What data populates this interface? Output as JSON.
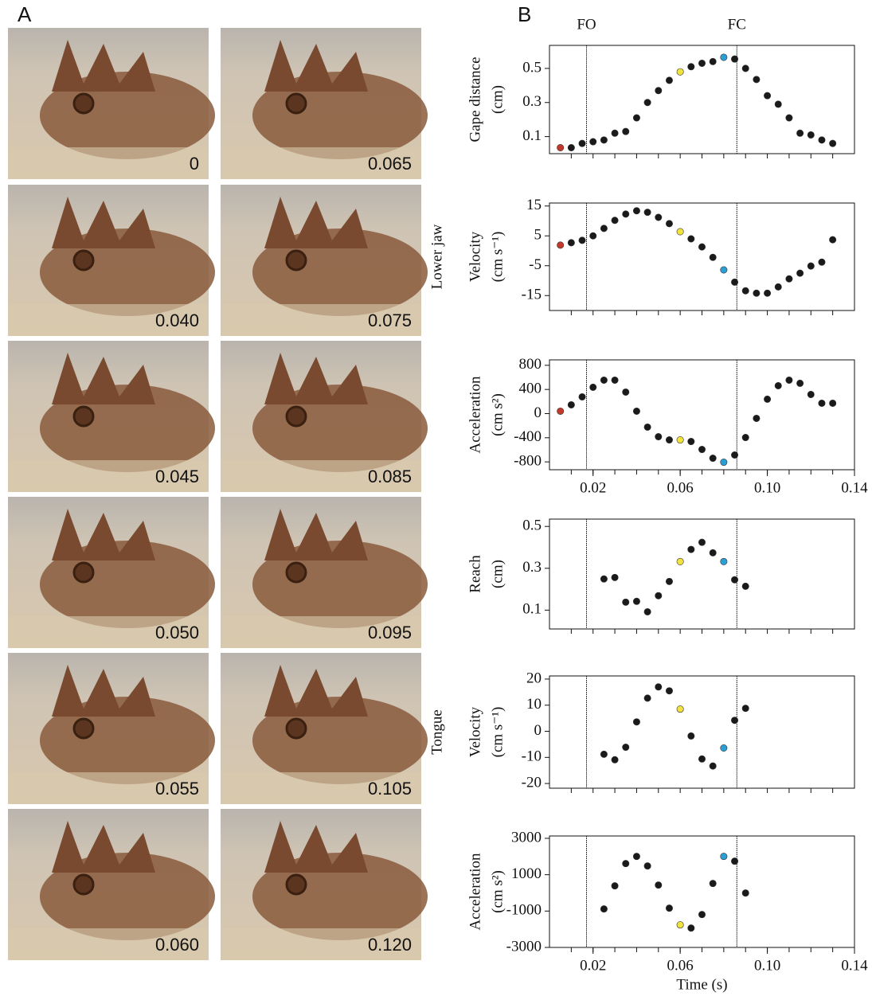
{
  "panel_labels": [
    "A",
    "B"
  ],
  "photo_labels": [
    [
      "0",
      "0.065"
    ],
    [
      "0.040",
      "0.075"
    ],
    [
      "0.045",
      "0.085"
    ],
    [
      "0.050",
      "0.095"
    ],
    [
      "0.055",
      "0.105"
    ],
    [
      "0.060",
      "0.120"
    ]
  ],
  "group_labels": [
    "Lower jaw",
    "Tongue"
  ],
  "markers": [
    {
      "label": "FO",
      "x": 0.017
    },
    {
      "label": "FC",
      "x": 0.086
    }
  ],
  "chart_data": [
    {
      "type": "scatter",
      "ylabel": [
        "Gape distance",
        "(cm)"
      ],
      "xlim": [
        0,
        0.14
      ],
      "ylim": [
        0,
        0.635
      ],
      "yticks": [
        0.1,
        0.3,
        0.5
      ],
      "xminor": [
        0.01,
        0.02,
        0.03,
        0.04,
        0.05,
        0.06,
        0.07,
        0.08,
        0.09,
        0.1,
        0.11,
        0.12,
        0.13
      ],
      "x": [
        0.005,
        0.01,
        0.015,
        0.02,
        0.025,
        0.03,
        0.035,
        0.04,
        0.045,
        0.05,
        0.055,
        0.06,
        0.065,
        0.07,
        0.075,
        0.08,
        0.085,
        0.09,
        0.095,
        0.1,
        0.105,
        0.11,
        0.115,
        0.12,
        0.125,
        0.13
      ],
      "values": [
        0.035,
        0.035,
        0.06,
        0.07,
        0.08,
        0.12,
        0.13,
        0.21,
        0.3,
        0.37,
        0.43,
        0.48,
        0.51,
        0.53,
        0.54,
        0.565,
        0.555,
        0.5,
        0.435,
        0.34,
        0.29,
        0.21,
        0.12,
        0.11,
        0.08,
        0.06
      ],
      "colors": [
        "#c0392b",
        "#1a1a1a",
        "#1a1a1a",
        "#1a1a1a",
        "#1a1a1a",
        "#1a1a1a",
        "#1a1a1a",
        "#1a1a1a",
        "#1a1a1a",
        "#1a1a1a",
        "#1a1a1a",
        "#f2e23c",
        "#1a1a1a",
        "#1a1a1a",
        "#1a1a1a",
        "#2a9fd6",
        "#1a1a1a",
        "#1a1a1a",
        "#1a1a1a",
        "#1a1a1a",
        "#1a1a1a",
        "#1a1a1a",
        "#1a1a1a",
        "#1a1a1a",
        "#1a1a1a",
        "#1a1a1a"
      ]
    },
    {
      "type": "scatter",
      "ylabel": [
        "Velocity",
        "(cm s⁻¹)"
      ],
      "xlim": [
        0,
        0.14
      ],
      "ylim": [
        -20,
        16
      ],
      "yticks": [
        -15,
        -5,
        5,
        15
      ],
      "xminor": [
        0.01,
        0.02,
        0.03,
        0.04,
        0.05,
        0.06,
        0.07,
        0.08,
        0.09,
        0.1,
        0.11,
        0.12,
        0.13
      ],
      "x": [
        0.005,
        0.01,
        0.015,
        0.02,
        0.025,
        0.03,
        0.035,
        0.04,
        0.045,
        0.05,
        0.055,
        0.06,
        0.065,
        0.07,
        0.075,
        0.08,
        0.085,
        0.09,
        0.095,
        0.1,
        0.105,
        0.11,
        0.115,
        0.12,
        0.125,
        0.13
      ],
      "values": [
        1.9,
        2.7,
        3.5,
        5,
        7.5,
        10.2,
        12.3,
        13.4,
        12.9,
        11.2,
        9.1,
        6.4,
        4,
        1.3,
        -2.2,
        -6.4,
        -10.5,
        -13.4,
        -14.2,
        -14.2,
        -12.1,
        -9.4,
        -7.5,
        -5.1,
        -3.8,
        3.7
      ],
      "colors": [
        "#c0392b",
        "#1a1a1a",
        "#1a1a1a",
        "#1a1a1a",
        "#1a1a1a",
        "#1a1a1a",
        "#1a1a1a",
        "#1a1a1a",
        "#1a1a1a",
        "#1a1a1a",
        "#1a1a1a",
        "#f2e23c",
        "#1a1a1a",
        "#1a1a1a",
        "#1a1a1a",
        "#2a9fd6",
        "#1a1a1a",
        "#1a1a1a",
        "#1a1a1a",
        "#1a1a1a",
        "#1a1a1a",
        "#1a1a1a",
        "#1a1a1a",
        "#1a1a1a",
        "#1a1a1a",
        "#1a1a1a"
      ]
    },
    {
      "type": "scatter",
      "ylabel": [
        "Acceleration",
        "(cm s²)"
      ],
      "xlim": [
        0,
        0.14
      ],
      "ylim": [
        -930,
        890
      ],
      "yticks": [
        -800,
        -400,
        0,
        400,
        800
      ],
      "xticks": [
        0.02,
        0.06,
        {
          "value": 0.1,
          "label": "0.10"
        },
        0.14
      ],
      "xminor": [
        0.01,
        0.02,
        0.03,
        0.04,
        0.05,
        0.06,
        0.07,
        0.08,
        0.09,
        0.1,
        0.11,
        0.12,
        0.13
      ],
      "x": [
        0.005,
        0.01,
        0.015,
        0.02,
        0.025,
        0.03,
        0.035,
        0.04,
        0.045,
        0.05,
        0.055,
        0.06,
        0.065,
        0.07,
        0.075,
        0.08,
        0.085,
        0.09,
        0.095,
        0.1,
        0.105,
        0.11,
        0.115,
        0.12,
        0.125,
        0.13
      ],
      "values": [
        40,
        145,
        277,
        436,
        554,
        554,
        356,
        40,
        -224,
        -383,
        -436,
        -436,
        -462,
        -594,
        -739,
        -805,
        -686,
        -396,
        -79,
        238,
        462,
        554,
        502,
        317,
        172,
        172
      ],
      "colors": [
        "#c0392b",
        "#1a1a1a",
        "#1a1a1a",
        "#1a1a1a",
        "#1a1a1a",
        "#1a1a1a",
        "#1a1a1a",
        "#1a1a1a",
        "#1a1a1a",
        "#1a1a1a",
        "#1a1a1a",
        "#f2e23c",
        "#1a1a1a",
        "#1a1a1a",
        "#1a1a1a",
        "#2a9fd6",
        "#1a1a1a",
        "#1a1a1a",
        "#1a1a1a",
        "#1a1a1a",
        "#1a1a1a",
        "#1a1a1a",
        "#1a1a1a",
        "#1a1a1a",
        "#1a1a1a",
        "#1a1a1a"
      ]
    },
    {
      "type": "scatter",
      "ylabel": [
        "Reach",
        "(cm)"
      ],
      "xlim": [
        0,
        0.14
      ],
      "ylim": [
        0.01,
        0.535
      ],
      "yticks": [
        0.1,
        0.3,
        0.5
      ],
      "xminor": [
        0.01,
        0.02,
        0.03,
        0.04,
        0.05,
        0.06,
        0.07,
        0.08,
        0.09,
        0.1,
        0.11,
        0.12,
        0.13
      ],
      "x": [
        0.025,
        0.03,
        0.035,
        0.04,
        0.045,
        0.05,
        0.055,
        0.06,
        0.065,
        0.07,
        0.075,
        0.08,
        0.085,
        0.09
      ],
      "values": [
        0.249,
        0.256,
        0.138,
        0.142,
        0.092,
        0.169,
        0.237,
        0.332,
        0.39,
        0.424,
        0.374,
        0.332,
        0.245,
        0.214
      ],
      "colors": [
        "#1a1a1a",
        "#1a1a1a",
        "#1a1a1a",
        "#1a1a1a",
        "#1a1a1a",
        "#1a1a1a",
        "#1a1a1a",
        "#f2e23c",
        "#1a1a1a",
        "#1a1a1a",
        "#1a1a1a",
        "#2a9fd6",
        "#1a1a1a",
        "#1a1a1a"
      ]
    },
    {
      "type": "scatter",
      "ylabel": [
        "Velocity",
        "(cm s⁻¹)"
      ],
      "xlim": [
        0,
        0.14
      ],
      "ylim": [
        -21.8,
        21.2
      ],
      "yticks": [
        -20,
        -10,
        0,
        10,
        20
      ],
      "xminor": [
        0.01,
        0.02,
        0.03,
        0.04,
        0.05,
        0.06,
        0.07,
        0.08,
        0.09,
        0.1,
        0.11,
        0.12,
        0.13
      ],
      "x": [
        0.025,
        0.03,
        0.035,
        0.04,
        0.045,
        0.05,
        0.055,
        0.06,
        0.065,
        0.07,
        0.075,
        0.08,
        0.085,
        0.09
      ],
      "values": [
        -8.8,
        -10.9,
        -6.1,
        3.6,
        12.7,
        17,
        15.5,
        8.5,
        -1.8,
        -10.6,
        -13.3,
        -6.4,
        4.2,
        8.8
      ],
      "colors": [
        "#1a1a1a",
        "#1a1a1a",
        "#1a1a1a",
        "#1a1a1a",
        "#1a1a1a",
        "#1a1a1a",
        "#1a1a1a",
        "#f2e23c",
        "#1a1a1a",
        "#1a1a1a",
        "#1a1a1a",
        "#2a9fd6",
        "#1a1a1a",
        "#1a1a1a"
      ]
    },
    {
      "type": "scatter",
      "ylabel": [
        "Acceleration",
        "(cm s²)"
      ],
      "xlabel": "Time (s)",
      "xlim": [
        0,
        0.14
      ],
      "ylim": [
        -3000,
        3130
      ],
      "yticks": [
        -3000,
        -1000,
        1000,
        3000
      ],
      "xticks": [
        0.02,
        0.06,
        {
          "value": 0.1,
          "label": "0.10"
        },
        0.14
      ],
      "xminor": [
        0.01,
        0.02,
        0.03,
        0.04,
        0.05,
        0.06,
        0.07,
        0.08,
        0.09,
        0.1,
        0.11,
        0.12,
        0.13
      ],
      "x": [
        0.025,
        0.03,
        0.035,
        0.04,
        0.045,
        0.05,
        0.055,
        0.06,
        0.065,
        0.07,
        0.075,
        0.08,
        0.085,
        0.09
      ],
      "values": [
        -883,
        387,
        1613,
        2007,
        1482,
        431,
        -840,
        -1759,
        -1935,
        -1190,
        518,
        2007,
        1745,
        -7
      ],
      "colors": [
        "#1a1a1a",
        "#1a1a1a",
        "#1a1a1a",
        "#1a1a1a",
        "#1a1a1a",
        "#1a1a1a",
        "#1a1a1a",
        "#f2e23c",
        "#1a1a1a",
        "#1a1a1a",
        "#1a1a1a",
        "#2a9fd6",
        "#1a1a1a",
        "#1a1a1a"
      ]
    }
  ]
}
